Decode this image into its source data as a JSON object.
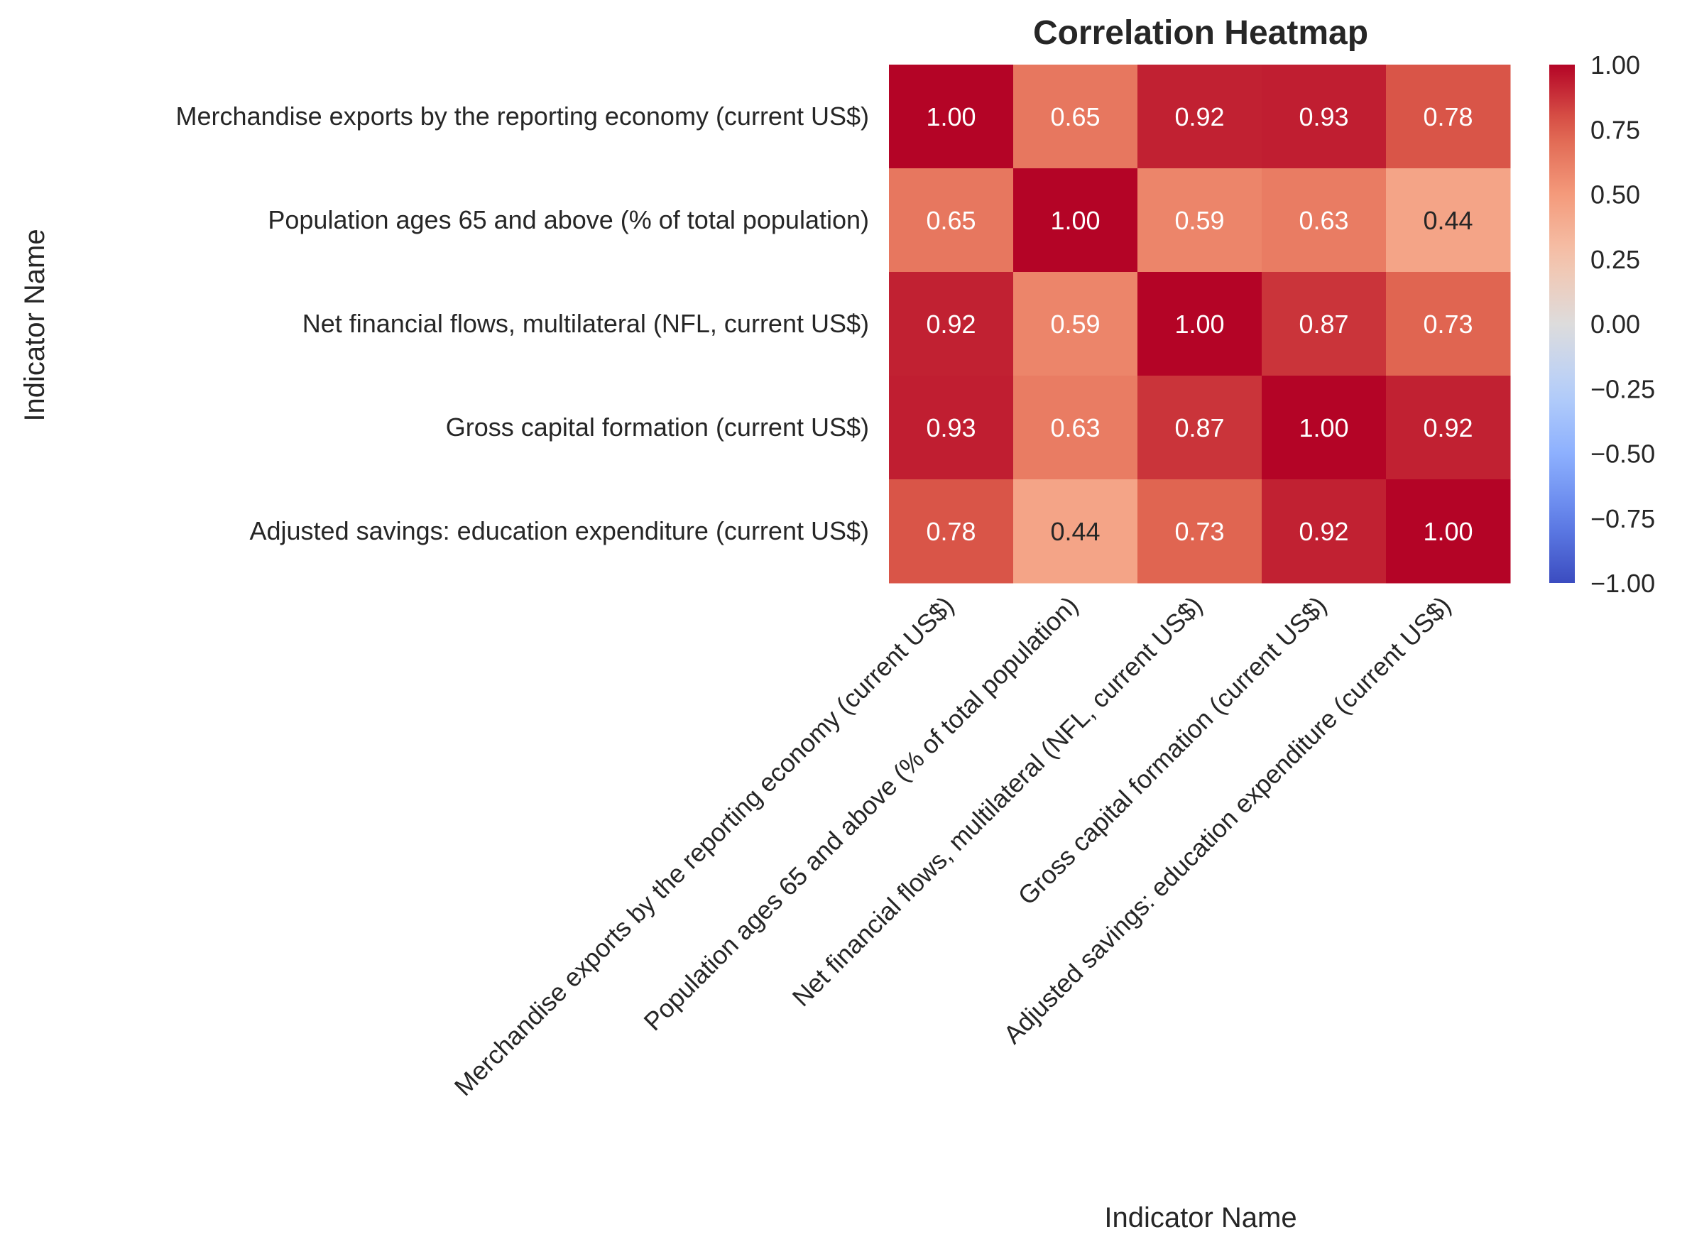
{
  "chart_data": {
    "type": "heatmap",
    "title": "Correlation Heatmap",
    "xlabel": "Indicator Name",
    "ylabel": "Indicator Name",
    "rows": [
      "Merchandise exports by the reporting economy (current US$)",
      "Population ages 65 and above (% of total population)",
      "Net financial flows, multilateral (NFL, current US$)",
      "Gross capital formation (current US$)",
      "Adjusted savings: education expenditure (current US$)"
    ],
    "columns": [
      "Merchandise exports by the reporting economy (current US$)",
      "Population ages 65 and above (% of total population)",
      "Net financial flows, multilateral (NFL, current US$)",
      "Gross capital formation (current US$)",
      "Adjusted savings: education expenditure (current US$)"
    ],
    "values": [
      [
        1.0,
        0.65,
        0.92,
        0.93,
        0.78
      ],
      [
        0.65,
        1.0,
        0.59,
        0.63,
        0.44
      ],
      [
        0.92,
        0.59,
        1.0,
        0.87,
        0.73
      ],
      [
        0.93,
        0.63,
        0.87,
        1.0,
        0.92
      ],
      [
        0.78,
        0.44,
        0.73,
        0.92,
        1.0
      ]
    ],
    "value_format": "0.00",
    "colormap": "coolwarm",
    "vmin": -1.0,
    "vmax": 1.0,
    "colorbar": {
      "ticks": [
        1.0,
        0.75,
        0.5,
        0.25,
        0.0,
        -0.25,
        -0.5,
        -0.75,
        -1.0
      ],
      "tick_labels": [
        "1.00",
        "0.75",
        "0.50",
        "0.25",
        "0.00",
        "−0.25",
        "−0.50",
        "−0.75",
        "−1.00"
      ]
    },
    "colors": {
      "low": "#3b4cc0",
      "mid": "#dddcdc",
      "high": "#b40426",
      "text_light": "#ffffff",
      "text_dark": "#262626"
    }
  }
}
